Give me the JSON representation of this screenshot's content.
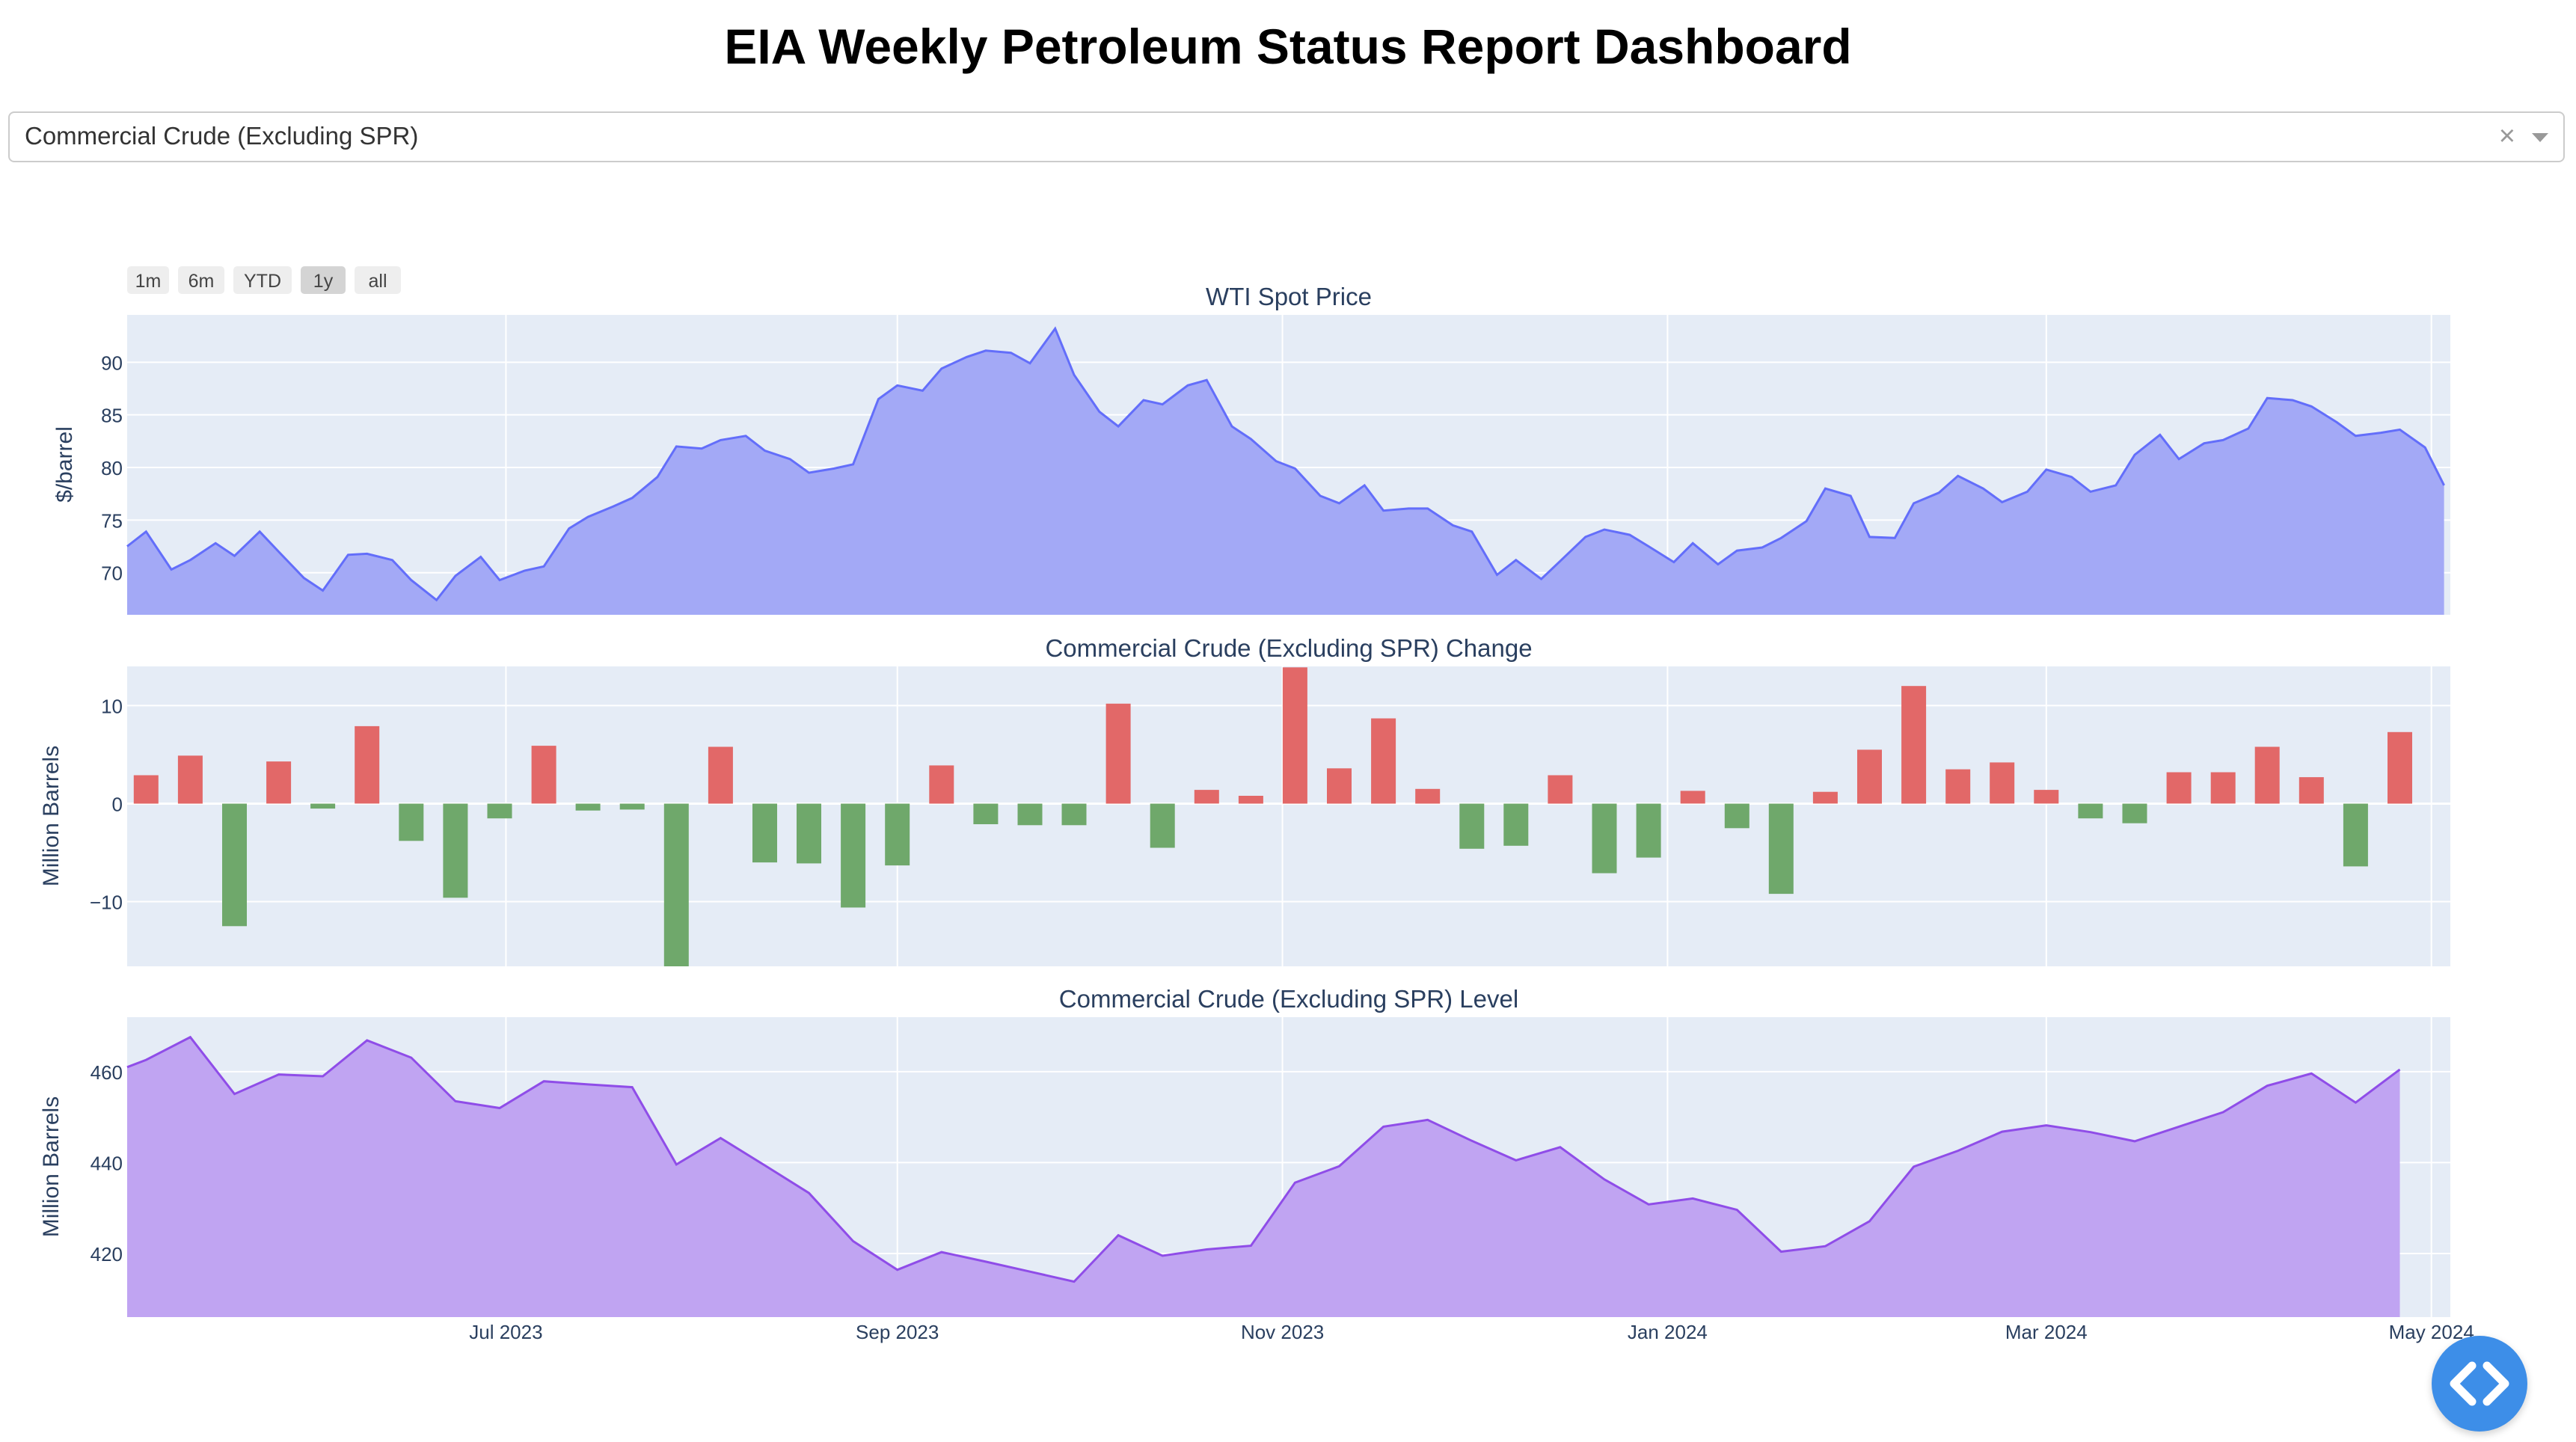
{
  "page": {
    "title": "EIA Weekly Petroleum Status Report Dashboard"
  },
  "selector": {
    "value": "Commercial Crude (Excluding SPR)",
    "clear_icon": "close-icon",
    "caret_icon": "chevron-down-icon"
  },
  "range_buttons": [
    "1m",
    "6m",
    "YTD",
    "1y",
    "all"
  ],
  "range_selected": "1y",
  "colors": {
    "plot_bg": "#e5ecf6",
    "price_line": "#636efa",
    "price_fill": "#a3a9f6",
    "increase": "#e26868",
    "decrease": "#6fa86b",
    "level_line": "#8f4de8",
    "level_fill": "#c0a4f2"
  },
  "x_ticks": [
    "Jul 2023",
    "Sep 2023",
    "Nov 2023",
    "Jan 2024",
    "Mar 2024",
    "May 2024"
  ],
  "chart_data": [
    {
      "type": "area",
      "title": "WTI Spot Price",
      "ylabel": "$/barrel",
      "y_ticks": [
        70,
        75,
        80,
        85,
        90
      ],
      "ylim": [
        66,
        94.5
      ],
      "xlim": [
        "2023-05-02",
        "2024-05-04"
      ],
      "x": [
        "2023-05-02",
        "2023-05-05",
        "2023-05-09",
        "2023-05-12",
        "2023-05-16",
        "2023-05-19",
        "2023-05-23",
        "2023-05-26",
        "2023-05-30",
        "2023-06-02",
        "2023-06-06",
        "2023-06-09",
        "2023-06-13",
        "2023-06-16",
        "2023-06-20",
        "2023-06-23",
        "2023-06-27",
        "2023-06-30",
        "2023-07-04",
        "2023-07-07",
        "2023-07-11",
        "2023-07-14",
        "2023-07-18",
        "2023-07-21",
        "2023-07-25",
        "2023-07-28",
        "2023-08-01",
        "2023-08-04",
        "2023-08-08",
        "2023-08-11",
        "2023-08-15",
        "2023-08-18",
        "2023-08-22",
        "2023-08-25",
        "2023-08-29",
        "2023-09-01",
        "2023-09-05",
        "2023-09-08",
        "2023-09-12",
        "2023-09-15",
        "2023-09-19",
        "2023-09-22",
        "2023-09-26",
        "2023-09-29",
        "2023-10-03",
        "2023-10-06",
        "2023-10-10",
        "2023-10-13",
        "2023-10-17",
        "2023-10-20",
        "2023-10-24",
        "2023-10-27",
        "2023-10-31",
        "2023-11-03",
        "2023-11-07",
        "2023-11-10",
        "2023-11-14",
        "2023-11-17",
        "2023-11-21",
        "2023-11-24",
        "2023-11-28",
        "2023-12-01",
        "2023-12-05",
        "2023-12-08",
        "2023-12-12",
        "2023-12-15",
        "2023-12-19",
        "2023-12-22",
        "2023-12-26",
        "2023-12-29",
        "2024-01-02",
        "2024-01-05",
        "2024-01-09",
        "2024-01-12",
        "2024-01-16",
        "2024-01-19",
        "2024-01-23",
        "2024-01-26",
        "2024-01-30",
        "2024-02-02",
        "2024-02-06",
        "2024-02-09",
        "2024-02-13",
        "2024-02-16",
        "2024-02-20",
        "2024-02-23",
        "2024-02-27",
        "2024-03-01",
        "2024-03-05",
        "2024-03-08",
        "2024-03-12",
        "2024-03-15",
        "2024-03-19",
        "2024-03-22",
        "2024-03-26",
        "2024-03-29",
        "2024-04-02",
        "2024-04-05",
        "2024-04-09",
        "2024-04-12",
        "2024-04-16",
        "2024-04-19",
        "2024-04-23",
        "2024-04-26",
        "2024-04-30",
        "2024-05-03"
      ],
      "series": [
        {
          "values": [
            72.5,
            73.9,
            70.3,
            71.2,
            72.8,
            71.6,
            73.9,
            72.0,
            69.5,
            68.3,
            71.7,
            71.8,
            71.2,
            69.3,
            67.4,
            69.7,
            71.5,
            69.3,
            70.2,
            70.6,
            74.2,
            75.3,
            76.3,
            77.1,
            79.1,
            82.0,
            81.8,
            82.6,
            83.0,
            81.6,
            80.8,
            79.5,
            79.9,
            80.3,
            86.5,
            87.8,
            87.3,
            89.4,
            90.5,
            91.1,
            90.9,
            89.9,
            93.2,
            88.8,
            85.3,
            83.9,
            86.4,
            86.0,
            87.8,
            88.3,
            83.9,
            82.7,
            80.6,
            79.9,
            77.3,
            76.6,
            78.3,
            75.9,
            76.1,
            76.1,
            74.5,
            73.9,
            69.8,
            71.2,
            69.4,
            71.1,
            73.4,
            74.1,
            73.6,
            72.5,
            71.0,
            72.8,
            70.8,
            72.1,
            72.4,
            73.3,
            74.9,
            78.0,
            77.3,
            73.4,
            73.3,
            76.6,
            77.6,
            79.2,
            78.0,
            76.7,
            77.7,
            79.8,
            79.1,
            77.7,
            78.3,
            81.2,
            83.1,
            80.8,
            82.3,
            82.6,
            83.7,
            86.6,
            86.4,
            85.8,
            84.3,
            83.0,
            83.3,
            83.6,
            81.9,
            78.3
          ]
        }
      ]
    },
    {
      "type": "bar",
      "title": "Commercial Crude (Excluding SPR) Change",
      "ylabel": "Million Barrels",
      "y_ticks": [
        -10,
        0,
        10
      ],
      "ylim": [
        -16.6,
        14
      ],
      "x": [
        "2023-05-05",
        "2023-05-12",
        "2023-05-19",
        "2023-05-26",
        "2023-06-02",
        "2023-06-09",
        "2023-06-16",
        "2023-06-23",
        "2023-06-30",
        "2023-07-07",
        "2023-07-14",
        "2023-07-21",
        "2023-07-28",
        "2023-08-04",
        "2023-08-11",
        "2023-08-18",
        "2023-08-25",
        "2023-09-01",
        "2023-09-08",
        "2023-09-15",
        "2023-09-22",
        "2023-09-29",
        "2023-10-06",
        "2023-10-13",
        "2023-10-20",
        "2023-10-27",
        "2023-11-03",
        "2023-11-10",
        "2023-11-17",
        "2023-11-24",
        "2023-12-01",
        "2023-12-08",
        "2023-12-15",
        "2023-12-22",
        "2023-12-29",
        "2024-01-05",
        "2024-01-12",
        "2024-01-19",
        "2024-01-26",
        "2024-02-02",
        "2024-02-09",
        "2024-02-16",
        "2024-02-23",
        "2024-03-01",
        "2024-03-08",
        "2024-03-15",
        "2024-03-22",
        "2024-03-29",
        "2024-04-05",
        "2024-04-12",
        "2024-04-19",
        "2024-04-26"
      ],
      "series": [
        {
          "values": [
            2.9,
            4.9,
            -12.5,
            4.3,
            -0.5,
            7.9,
            -3.8,
            -9.6,
            -1.5,
            5.9,
            -0.7,
            -0.6,
            -17.0,
            5.8,
            -6.0,
            -6.1,
            -10.6,
            -6.3,
            3.9,
            -2.1,
            -2.2,
            -2.2,
            10.2,
            -4.5,
            1.4,
            0.8,
            13.9,
            3.6,
            8.7,
            1.5,
            -4.6,
            -4.3,
            2.9,
            -7.1,
            -5.5,
            1.3,
            -2.5,
            -9.2,
            1.2,
            5.5,
            12.0,
            3.5,
            4.2,
            1.4,
            -1.5,
            -2.0,
            3.2,
            3.2,
            5.8,
            2.7,
            -6.4,
            7.3
          ]
        }
      ]
    },
    {
      "type": "area",
      "title": "Commercial Crude (Excluding SPR) Level",
      "ylabel": "Million Barrels",
      "y_ticks": [
        420,
        440,
        460
      ],
      "ylim": [
        406,
        472
      ],
      "xlim": [
        "2023-05-02",
        "2024-05-04"
      ],
      "x": [
        "2023-05-02",
        "2023-05-05",
        "2023-05-12",
        "2023-05-19",
        "2023-05-26",
        "2023-06-02",
        "2023-06-09",
        "2023-06-16",
        "2023-06-23",
        "2023-06-30",
        "2023-07-07",
        "2023-07-14",
        "2023-07-21",
        "2023-07-28",
        "2023-08-04",
        "2023-08-11",
        "2023-08-18",
        "2023-08-25",
        "2023-09-01",
        "2023-09-08",
        "2023-09-15",
        "2023-09-22",
        "2023-09-29",
        "2023-10-06",
        "2023-10-13",
        "2023-10-20",
        "2023-10-27",
        "2023-11-03",
        "2023-11-10",
        "2023-11-17",
        "2023-11-24",
        "2023-12-01",
        "2023-12-08",
        "2023-12-15",
        "2023-12-22",
        "2023-12-29",
        "2024-01-05",
        "2024-01-12",
        "2024-01-19",
        "2024-01-26",
        "2024-02-02",
        "2024-02-09",
        "2024-02-16",
        "2024-02-23",
        "2024-03-01",
        "2024-03-08",
        "2024-03-15",
        "2024-03-22",
        "2024-03-29",
        "2024-04-05",
        "2024-04-12",
        "2024-04-19",
        "2024-04-26"
      ],
      "series": [
        {
          "values": [
            461,
            462.6,
            467.6,
            455.1,
            459.4,
            459.0,
            466.9,
            463.1,
            453.5,
            452.0,
            457.9,
            457.2,
            456.6,
            439.6,
            445.4,
            439.4,
            433.3,
            422.7,
            416.4,
            420.3,
            418.2,
            416.0,
            413.8,
            424.0,
            419.5,
            420.9,
            421.7,
            435.6,
            439.2,
            447.9,
            449.4,
            444.8,
            440.5,
            443.4,
            436.3,
            430.8,
            432.1,
            429.6,
            420.4,
            421.6,
            427.1,
            439.1,
            442.6,
            446.8,
            448.2,
            446.7,
            444.7,
            447.9,
            451.1,
            456.9,
            459.6,
            453.2,
            460.5
          ]
        }
      ]
    }
  ]
}
